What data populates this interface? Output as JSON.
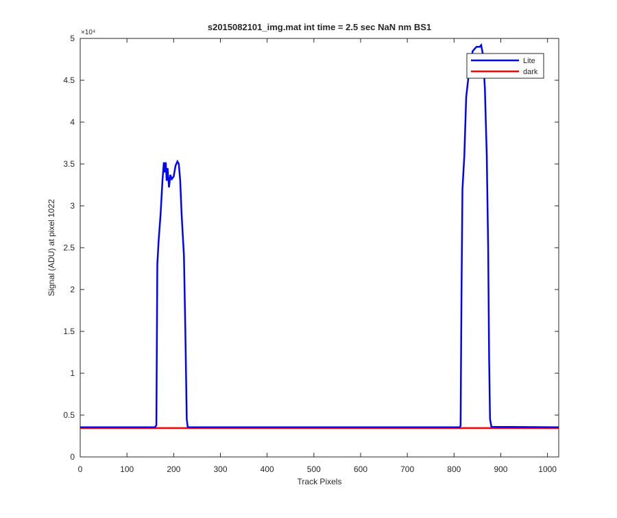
{
  "chart_data": {
    "type": "line",
    "title": "s2015082101_img.mat int time = 2.5 sec  NaN nm BS1",
    "x_label": "Track Pixels",
    "y_label": "Signal (ADU) at pixel 1022",
    "y_exponent_label": "×10⁴",
    "xlim": [
      0,
      1024
    ],
    "xticks": [
      0,
      100,
      200,
      300,
      400,
      500,
      600,
      700,
      800,
      900,
      1000
    ],
    "ylim": [
      0,
      50000
    ],
    "yticks": [
      {
        "value": 0,
        "label": "0"
      },
      {
        "value": 5000,
        "label": "0.5"
      },
      {
        "value": 10000,
        "label": "1"
      },
      {
        "value": 15000,
        "label": "1.5"
      },
      {
        "value": 20000,
        "label": "2"
      },
      {
        "value": 25000,
        "label": "2.5"
      },
      {
        "value": 30000,
        "label": "3"
      },
      {
        "value": 35000,
        "label": "3.5"
      },
      {
        "value": 40000,
        "label": "4"
      },
      {
        "value": 45000,
        "label": "4.5"
      },
      {
        "value": 50000,
        "label": "5"
      }
    ],
    "legend": "upper right",
    "series": [
      {
        "name": "Lite",
        "color": "#0000ff",
        "x": [
          0,
          160,
          163,
          165,
          168,
          172,
          176,
          179,
          181,
          183,
          185,
          187,
          190,
          193,
          196,
          200,
          204,
          208,
          211,
          214,
          217,
          220,
          222,
          225,
          228,
          230,
          232,
          812,
          814,
          816,
          818,
          822,
          826,
          830,
          835,
          840,
          848,
          855,
          858,
          862,
          866,
          870,
          873,
          875,
          877,
          880,
          1024
        ],
        "values": [
          3550,
          3550,
          3800,
          23000,
          26000,
          29000,
          33000,
          35200,
          34000,
          35200,
          33000,
          34500,
          32200,
          33700,
          33200,
          33500,
          34800,
          35300,
          35000,
          33000,
          29000,
          26000,
          24000,
          15000,
          4500,
          3600,
          3550,
          3550,
          3700,
          20000,
          32000,
          36000,
          43000,
          45000,
          47000,
          48500,
          49000,
          49000,
          49200,
          48000,
          44000,
          36000,
          25000,
          12000,
          4500,
          3600,
          3550
        ]
      },
      {
        "name": "dark",
        "color": "#ff0000",
        "x": [
          0,
          1024
        ],
        "values": [
          3450,
          3450
        ]
      }
    ]
  }
}
